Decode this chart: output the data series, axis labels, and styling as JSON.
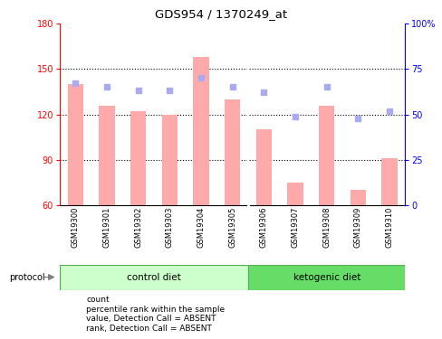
{
  "title": "GDS954 / 1370249_at",
  "samples": [
    "GSM19300",
    "GSM19301",
    "GSM19302",
    "GSM19303",
    "GSM19304",
    "GSM19305",
    "GSM19306",
    "GSM19307",
    "GSM19308",
    "GSM19309",
    "GSM19310"
  ],
  "bar_values": [
    140,
    126,
    122,
    120,
    158,
    130,
    110,
    75,
    126,
    70,
    91
  ],
  "rank_values": [
    67,
    65,
    63,
    63,
    70,
    65,
    62,
    49,
    65,
    48,
    52
  ],
  "ylim_left": [
    60,
    180
  ],
  "ylim_right": [
    0,
    100
  ],
  "yticks_left": [
    60,
    90,
    120,
    150,
    180
  ],
  "yticks_right": [
    0,
    25,
    50,
    75,
    100
  ],
  "ytick_labels_right": [
    "0",
    "25",
    "50",
    "75",
    "100%"
  ],
  "bar_color": "#ffaaaa",
  "rank_color": "#aaaaee",
  "control_diet_color": "#ccffcc",
  "ketogenic_diet_color": "#66dd66",
  "control_diet_label": "control diet",
  "ketogenic_diet_label": "ketogenic diet",
  "control_samples": 6,
  "ketogenic_samples": 5,
  "protocol_label": "protocol",
  "legend_items": [
    {
      "label": "count",
      "color": "#cc0000"
    },
    {
      "label": "percentile rank within the sample",
      "color": "#0000cc"
    },
    {
      "label": "value, Detection Call = ABSENT",
      "color": "#ffaaaa"
    },
    {
      "label": "rank, Detection Call = ABSENT",
      "color": "#aaaaee"
    }
  ]
}
